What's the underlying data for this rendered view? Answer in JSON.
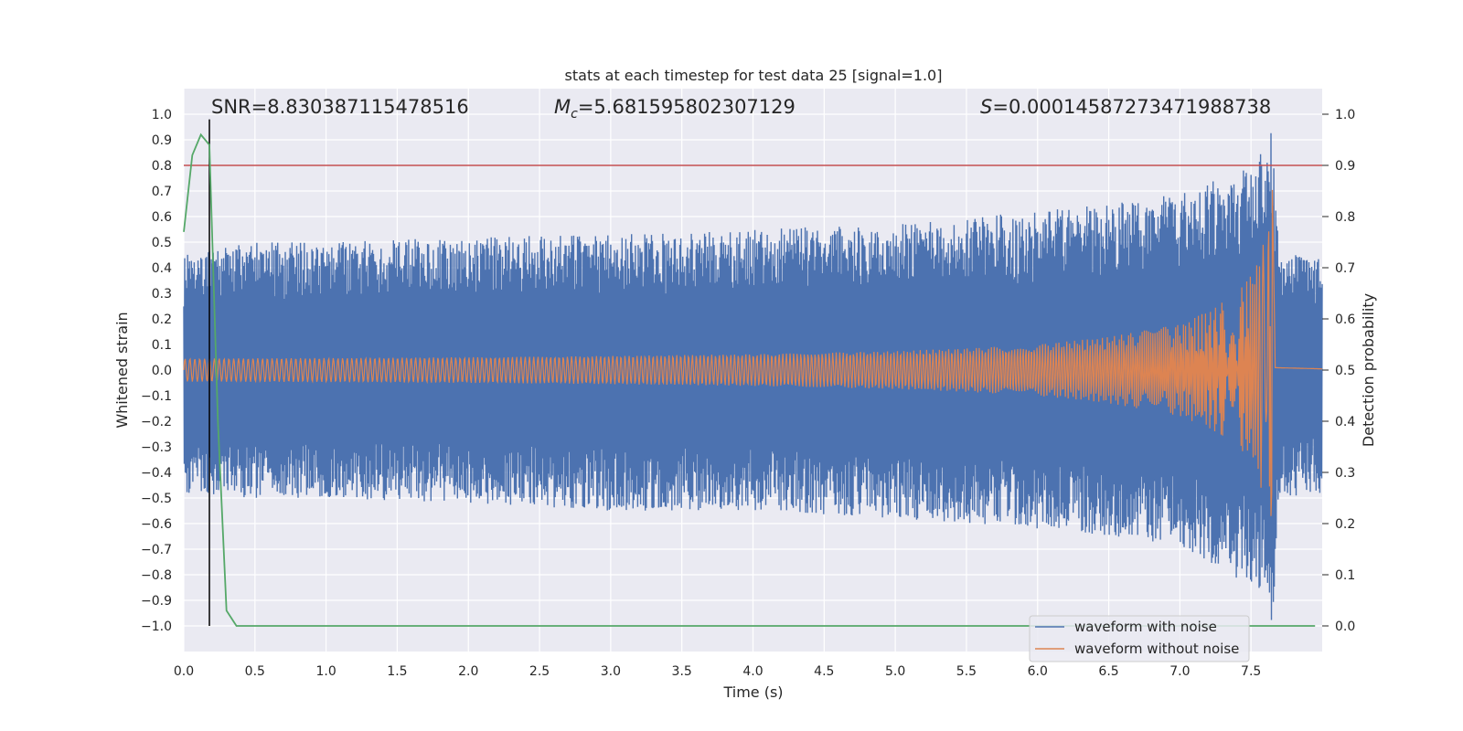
{
  "chart_data": {
    "type": "line",
    "title": "stats at each timestep for test data 25 [signal=1.0]",
    "xlabel": "Time (s)",
    "ylabel": "Whitened strain",
    "y2label": "Detection probability",
    "xlim": [
      0.0,
      8.0
    ],
    "ylim": [
      -1.1,
      1.1
    ],
    "y2lim": [
      -0.05,
      1.05
    ],
    "xticks": [
      0.0,
      0.5,
      1.0,
      1.5,
      2.0,
      2.5,
      3.0,
      3.5,
      4.0,
      4.5,
      5.0,
      5.5,
      6.0,
      6.5,
      7.0,
      7.5
    ],
    "xtick_labels": [
      "0.0",
      "0.5",
      "1.0",
      "1.5",
      "2.0",
      "2.5",
      "3.0",
      "3.5",
      "4.0",
      "4.5",
      "5.0",
      "5.5",
      "6.0",
      "6.5",
      "7.0",
      "7.5"
    ],
    "yticks": [
      1.0,
      0.9,
      0.8,
      0.7,
      0.6,
      0.5,
      0.4,
      0.3,
      0.2,
      0.1,
      0.0,
      -0.1,
      -0.2,
      -0.3,
      -0.4,
      -0.5,
      -0.6,
      -0.7,
      -0.8,
      -0.9,
      -1.0
    ],
    "ytick_labels": [
      "1.0",
      "0.9",
      "0.8",
      "0.7",
      "0.6",
      "0.5",
      "0.4",
      "0.3",
      "0.2",
      "0.1",
      "0.0",
      "−0.1",
      "−0.2",
      "−0.3",
      "−0.4",
      "−0.5",
      "−0.6",
      "−0.7",
      "−0.8",
      "−0.9",
      "−1.0"
    ],
    "y2ticks": [
      1.0,
      0.9,
      0.8,
      0.7,
      0.6,
      0.5,
      0.4,
      0.3,
      0.2,
      0.1,
      0.0
    ],
    "y2tick_labels": [
      "1.0",
      "0.9",
      "0.8",
      "0.7",
      "0.6",
      "0.5",
      "0.4",
      "0.3",
      "0.2",
      "0.1",
      "0.0"
    ],
    "annotations": {
      "snr": "SNR=8.830387115478516",
      "mc_symbol": "M",
      "mc_subscript": "c",
      "mc_value": "=5.681595802307129",
      "s_symbol": "S",
      "s_value": "=0.00014587273471988738"
    },
    "threshold_probability": 0.9,
    "marker_time": 0.18,
    "merger_time": 7.65,
    "series": [
      {
        "name": "waveform with noise",
        "axis": "left",
        "color": "#4c72b0",
        "envelope": {
          "t": [
            0.0,
            0.5,
            1.0,
            2.0,
            3.0,
            4.0,
            5.0,
            5.5,
            6.0,
            6.5,
            7.0,
            7.3,
            7.5,
            7.6,
            7.65,
            7.7,
            8.0
          ],
          "max": [
            0.45,
            0.5,
            0.5,
            0.52,
            0.53,
            0.55,
            0.57,
            0.6,
            0.62,
            0.65,
            0.7,
            0.75,
            0.8,
            0.9,
            0.98,
            0.45,
            0.45
          ],
          "min": [
            -0.48,
            -0.5,
            -0.5,
            -0.52,
            -0.55,
            -0.55,
            -0.58,
            -0.6,
            -0.62,
            -0.65,
            -0.7,
            -0.78,
            -0.85,
            -0.88,
            -1.0,
            -0.5,
            -0.48
          ]
        }
      },
      {
        "name": "waveform without noise",
        "axis": "left",
        "color": "#dd8452",
        "envelope": {
          "t": [
            0.0,
            1.0,
            2.0,
            3.0,
            4.0,
            5.0,
            5.5,
            6.0,
            6.5,
            7.0,
            7.2,
            7.4,
            7.5,
            7.55,
            7.6,
            7.63,
            7.65,
            7.67,
            8.0
          ],
          "amp": [
            0.045,
            0.047,
            0.05,
            0.055,
            0.062,
            0.074,
            0.085,
            0.1,
            0.13,
            0.18,
            0.23,
            0.3,
            0.37,
            0.42,
            0.52,
            0.65,
            0.75,
            0.01,
            0.005
          ]
        }
      },
      {
        "name": "detection probability",
        "axis": "right",
        "color": "#55a868",
        "x": [
          0.0,
          0.06,
          0.12,
          0.18,
          0.24,
          0.3,
          0.37,
          0.5,
          1.0,
          2.0,
          3.0,
          4.0,
          5.0,
          6.0,
          7.0,
          7.5,
          7.95
        ],
        "y": [
          0.77,
          0.92,
          0.96,
          0.94,
          0.4,
          0.03,
          0.0,
          0.0,
          0.0,
          0.0,
          0.0,
          0.0,
          0.0,
          0.0,
          0.0,
          0.0,
          0.0
        ]
      }
    ],
    "legend": {
      "location": "lower-right",
      "entries": [
        {
          "label": "waveform with noise",
          "color": "#4c72b0"
        },
        {
          "label": "waveform without noise",
          "color": "#dd8452"
        }
      ]
    },
    "colors": {
      "background": "#eaeaf2",
      "grid": "#ffffff",
      "threshold": "#c44e52",
      "marker": "#000000"
    }
  }
}
